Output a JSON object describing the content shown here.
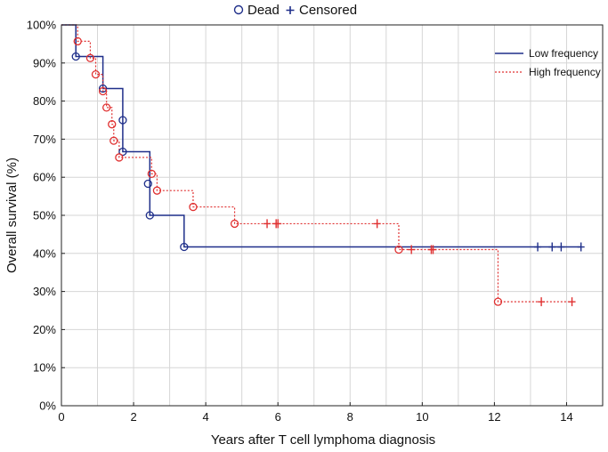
{
  "chart_data": {
    "type": "line",
    "subtype": "kaplan-meier step",
    "xlabel": "Years after T cell lymphoma diagnosis",
    "ylabel": "Overall survival (%)",
    "xlim": [
      0,
      15
    ],
    "ylim": [
      0,
      100
    ],
    "x_ticks": [
      0,
      2,
      4,
      6,
      8,
      10,
      12,
      14
    ],
    "y_ticks": [
      0,
      10,
      20,
      30,
      40,
      50,
      60,
      70,
      80,
      90,
      100
    ],
    "x_tick_labels": [
      "0",
      "2",
      "4",
      "6",
      "8",
      "10",
      "12",
      "14"
    ],
    "y_tick_labels": [
      "0%",
      "10%",
      "20%",
      "30%",
      "40%",
      "50%",
      "60%",
      "70%",
      "80%",
      "90%",
      "100%"
    ],
    "grid": true,
    "marker_legend": {
      "placement": "top-center",
      "items": [
        {
          "symbol": "o",
          "label": "Dead"
        },
        {
          "symbol": "+",
          "label": "Censored"
        }
      ]
    },
    "legend_placement": "top-right",
    "series": [
      {
        "name": "Low frequency",
        "color": "#1f2f8a",
        "line_style": "solid",
        "steps": [
          [
            0,
            100
          ],
          [
            0.4,
            91.7
          ],
          [
            1.15,
            83.3
          ],
          [
            1.7,
            66.7
          ],
          [
            2.45,
            50.0
          ],
          [
            3.4,
            41.7
          ],
          [
            14.4,
            41.7
          ]
        ],
        "dead": [
          [
            0.4,
            91.7
          ],
          [
            1.15,
            83.3
          ],
          [
            1.7,
            75.0
          ],
          [
            1.7,
            66.7
          ],
          [
            2.4,
            58.3
          ],
          [
            2.45,
            50.0
          ],
          [
            3.4,
            41.7
          ]
        ],
        "censored": [
          [
            13.2,
            41.7
          ],
          [
            13.6,
            41.7
          ],
          [
            13.85,
            41.7
          ],
          [
            14.4,
            41.7
          ]
        ]
      },
      {
        "name": "High frequency",
        "color": "#e03030",
        "line_style": "dotted",
        "steps": [
          [
            0,
            100
          ],
          [
            0.45,
            95.7
          ],
          [
            0.8,
            91.3
          ],
          [
            0.95,
            87.0
          ],
          [
            1.15,
            82.6
          ],
          [
            1.25,
            78.3
          ],
          [
            1.4,
            73.9
          ],
          [
            1.45,
            69.6
          ],
          [
            1.6,
            65.2
          ],
          [
            2.5,
            60.9
          ],
          [
            2.65,
            56.5
          ],
          [
            3.65,
            52.2
          ],
          [
            4.8,
            47.8
          ],
          [
            9.35,
            41.0
          ],
          [
            12.1,
            27.3
          ],
          [
            14.15,
            27.3
          ]
        ],
        "dead": [
          [
            0.45,
            95.7
          ],
          [
            0.8,
            91.3
          ],
          [
            0.95,
            87.0
          ],
          [
            1.15,
            82.6
          ],
          [
            1.25,
            78.3
          ],
          [
            1.4,
            73.9
          ],
          [
            1.45,
            69.6
          ],
          [
            1.6,
            65.2
          ],
          [
            2.5,
            60.9
          ],
          [
            2.65,
            56.5
          ],
          [
            3.65,
            52.2
          ],
          [
            4.8,
            47.8
          ],
          [
            9.35,
            41.0
          ],
          [
            12.1,
            27.3
          ]
        ],
        "censored": [
          [
            5.7,
            47.8
          ],
          [
            5.95,
            47.8
          ],
          [
            6.0,
            47.8
          ],
          [
            8.75,
            47.8
          ],
          [
            9.7,
            41.0
          ],
          [
            10.25,
            41.0
          ],
          [
            10.3,
            41.0
          ],
          [
            13.3,
            27.3
          ],
          [
            14.15,
            27.3
          ]
        ]
      }
    ]
  }
}
